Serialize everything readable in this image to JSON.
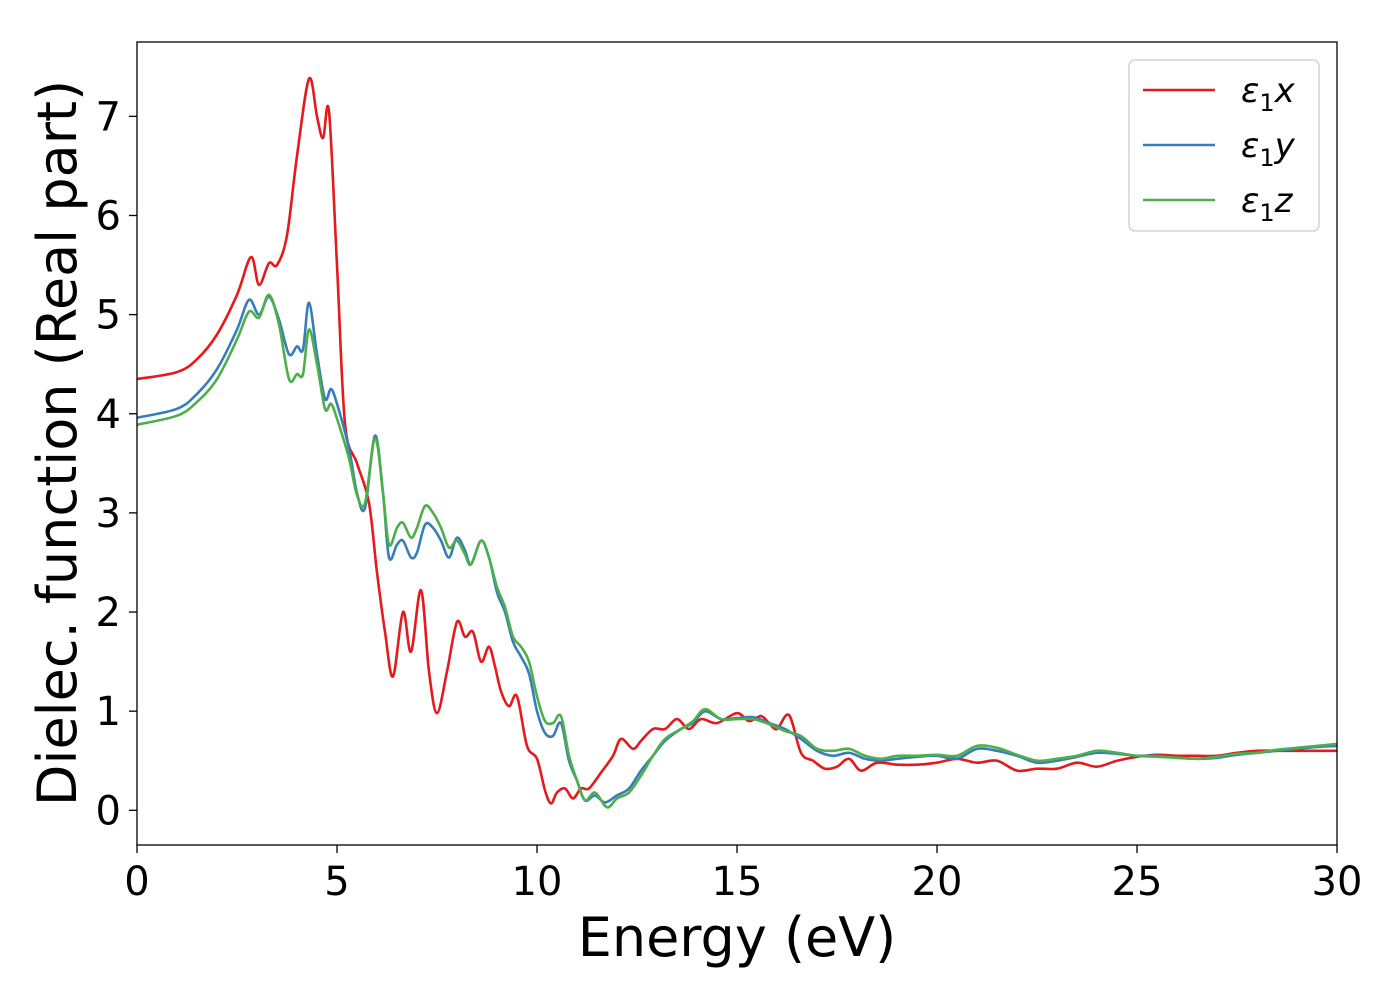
{
  "chart_data": {
    "type": "line",
    "xlabel": "Energy (eV)",
    "ylabel": "Dielec. function (Real part)",
    "xlim": [
      0,
      30
    ],
    "ylim": [
      -0.35,
      7.75
    ],
    "xticks": [
      0,
      5,
      10,
      15,
      20,
      25,
      30
    ],
    "yticks": [
      0,
      1,
      2,
      3,
      4,
      5,
      6,
      7
    ],
    "grid": false,
    "legend_position": "top-right",
    "series": [
      {
        "name": "ε1x",
        "legend": {
          "symbol": "ε",
          "sub": "1",
          "axis": "x"
        },
        "color": "#e41a1c",
        "points": [
          [
            0,
            4.35
          ],
          [
            1,
            4.42
          ],
          [
            1.5,
            4.55
          ],
          [
            2,
            4.8
          ],
          [
            2.5,
            5.2
          ],
          [
            2.85,
            5.58
          ],
          [
            3.05,
            5.3
          ],
          [
            3.3,
            5.52
          ],
          [
            3.5,
            5.5
          ],
          [
            3.75,
            5.8
          ],
          [
            4.0,
            6.6
          ],
          [
            4.3,
            7.38
          ],
          [
            4.5,
            7.0
          ],
          [
            4.65,
            6.78
          ],
          [
            4.8,
            7.05
          ],
          [
            5.0,
            5.5
          ],
          [
            5.2,
            3.9
          ],
          [
            5.5,
            3.5
          ],
          [
            5.8,
            3.1
          ],
          [
            6.0,
            2.4
          ],
          [
            6.2,
            1.8
          ],
          [
            6.4,
            1.35
          ],
          [
            6.65,
            2.0
          ],
          [
            6.85,
            1.6
          ],
          [
            7.1,
            2.22
          ],
          [
            7.3,
            1.4
          ],
          [
            7.5,
            0.98
          ],
          [
            7.75,
            1.4
          ],
          [
            8.0,
            1.9
          ],
          [
            8.2,
            1.75
          ],
          [
            8.4,
            1.8
          ],
          [
            8.6,
            1.5
          ],
          [
            8.8,
            1.65
          ],
          [
            8.95,
            1.45
          ],
          [
            9.1,
            1.2
          ],
          [
            9.3,
            1.05
          ],
          [
            9.5,
            1.15
          ],
          [
            9.75,
            0.65
          ],
          [
            10.0,
            0.52
          ],
          [
            10.2,
            0.2
          ],
          [
            10.35,
            0.07
          ],
          [
            10.5,
            0.18
          ],
          [
            10.7,
            0.22
          ],
          [
            10.9,
            0.12
          ],
          [
            11.1,
            0.22
          ],
          [
            11.3,
            0.22
          ],
          [
            11.6,
            0.38
          ],
          [
            11.9,
            0.55
          ],
          [
            12.1,
            0.72
          ],
          [
            12.4,
            0.62
          ],
          [
            12.6,
            0.7
          ],
          [
            12.9,
            0.82
          ],
          [
            13.2,
            0.82
          ],
          [
            13.5,
            0.92
          ],
          [
            13.8,
            0.82
          ],
          [
            14.1,
            0.92
          ],
          [
            14.5,
            0.88
          ],
          [
            15.0,
            0.98
          ],
          [
            15.3,
            0.9
          ],
          [
            15.6,
            0.95
          ],
          [
            15.8,
            0.88
          ],
          [
            16.0,
            0.82
          ],
          [
            16.3,
            0.96
          ],
          [
            16.6,
            0.58
          ],
          [
            16.9,
            0.5
          ],
          [
            17.2,
            0.42
          ],
          [
            17.5,
            0.44
          ],
          [
            17.8,
            0.52
          ],
          [
            18.1,
            0.4
          ],
          [
            18.5,
            0.48
          ],
          [
            19.0,
            0.46
          ],
          [
            19.5,
            0.46
          ],
          [
            20.0,
            0.48
          ],
          [
            20.5,
            0.52
          ],
          [
            21.0,
            0.48
          ],
          [
            21.5,
            0.5
          ],
          [
            22.0,
            0.4
          ],
          [
            22.5,
            0.42
          ],
          [
            23.0,
            0.42
          ],
          [
            23.5,
            0.48
          ],
          [
            24.0,
            0.44
          ],
          [
            24.5,
            0.5
          ],
          [
            25.0,
            0.54
          ],
          [
            25.5,
            0.56
          ],
          [
            26.0,
            0.55
          ],
          [
            26.5,
            0.55
          ],
          [
            27.0,
            0.55
          ],
          [
            27.5,
            0.58
          ],
          [
            28.0,
            0.6
          ],
          [
            28.5,
            0.6
          ],
          [
            29.0,
            0.6
          ],
          [
            29.5,
            0.6
          ],
          [
            30.0,
            0.6
          ]
        ]
      },
      {
        "name": "ε1y",
        "legend": {
          "symbol": "ε",
          "sub": "1",
          "axis": "y"
        },
        "color": "#377eb8",
        "points": [
          [
            0,
            3.96
          ],
          [
            1,
            4.05
          ],
          [
            1.5,
            4.2
          ],
          [
            2,
            4.45
          ],
          [
            2.5,
            4.85
          ],
          [
            2.8,
            5.15
          ],
          [
            3.05,
            5.0
          ],
          [
            3.3,
            5.18
          ],
          [
            3.55,
            4.95
          ],
          [
            3.8,
            4.6
          ],
          [
            4.0,
            4.68
          ],
          [
            4.15,
            4.65
          ],
          [
            4.3,
            5.12
          ],
          [
            4.5,
            4.6
          ],
          [
            4.7,
            4.15
          ],
          [
            4.85,
            4.25
          ],
          [
            5.0,
            4.1
          ],
          [
            5.3,
            3.65
          ],
          [
            5.5,
            3.2
          ],
          [
            5.7,
            3.05
          ],
          [
            5.95,
            3.78
          ],
          [
            6.15,
            3.2
          ],
          [
            6.3,
            2.55
          ],
          [
            6.5,
            2.68
          ],
          [
            6.65,
            2.72
          ],
          [
            6.85,
            2.55
          ],
          [
            7.0,
            2.6
          ],
          [
            7.2,
            2.88
          ],
          [
            7.4,
            2.85
          ],
          [
            7.6,
            2.72
          ],
          [
            7.8,
            2.55
          ],
          [
            8.0,
            2.75
          ],
          [
            8.2,
            2.62
          ],
          [
            8.35,
            2.48
          ],
          [
            8.6,
            2.72
          ],
          [
            8.8,
            2.55
          ],
          [
            9.0,
            2.2
          ],
          [
            9.2,
            2.0
          ],
          [
            9.4,
            1.7
          ],
          [
            9.6,
            1.55
          ],
          [
            9.8,
            1.38
          ],
          [
            10.0,
            1.0
          ],
          [
            10.2,
            0.78
          ],
          [
            10.4,
            0.75
          ],
          [
            10.6,
            0.88
          ],
          [
            10.8,
            0.5
          ],
          [
            11.0,
            0.3
          ],
          [
            11.2,
            0.1
          ],
          [
            11.45,
            0.15
          ],
          [
            11.7,
            0.08
          ],
          [
            12.0,
            0.15
          ],
          [
            12.3,
            0.22
          ],
          [
            12.6,
            0.4
          ],
          [
            12.9,
            0.55
          ],
          [
            13.2,
            0.7
          ],
          [
            13.6,
            0.82
          ],
          [
            13.9,
            0.88
          ],
          [
            14.2,
            1.0
          ],
          [
            14.6,
            0.92
          ],
          [
            15.0,
            0.93
          ],
          [
            15.4,
            0.94
          ],
          [
            15.8,
            0.88
          ],
          [
            16.2,
            0.82
          ],
          [
            16.6,
            0.72
          ],
          [
            17.0,
            0.6
          ],
          [
            17.4,
            0.55
          ],
          [
            17.8,
            0.58
          ],
          [
            18.2,
            0.52
          ],
          [
            18.6,
            0.5
          ],
          [
            19.0,
            0.52
          ],
          [
            19.5,
            0.54
          ],
          [
            20.0,
            0.55
          ],
          [
            20.5,
            0.52
          ],
          [
            21.0,
            0.62
          ],
          [
            21.5,
            0.6
          ],
          [
            22.0,
            0.55
          ],
          [
            22.5,
            0.48
          ],
          [
            23.0,
            0.5
          ],
          [
            23.5,
            0.54
          ],
          [
            24.0,
            0.58
          ],
          [
            24.5,
            0.57
          ],
          [
            25.0,
            0.55
          ],
          [
            25.5,
            0.55
          ],
          [
            26.0,
            0.53
          ],
          [
            26.5,
            0.52
          ],
          [
            27.0,
            0.53
          ],
          [
            27.5,
            0.56
          ],
          [
            28.0,
            0.58
          ],
          [
            28.5,
            0.6
          ],
          [
            29.0,
            0.62
          ],
          [
            29.5,
            0.64
          ],
          [
            30.0,
            0.65
          ]
        ]
      },
      {
        "name": "ε1z",
        "legend": {
          "symbol": "ε",
          "sub": "1",
          "axis": "z"
        },
        "color": "#4daf4a",
        "points": [
          [
            0,
            3.89
          ],
          [
            1,
            3.98
          ],
          [
            1.5,
            4.12
          ],
          [
            2,
            4.35
          ],
          [
            2.5,
            4.75
          ],
          [
            2.8,
            5.03
          ],
          [
            3.05,
            4.97
          ],
          [
            3.3,
            5.2
          ],
          [
            3.55,
            4.9
          ],
          [
            3.8,
            4.35
          ],
          [
            4.0,
            4.4
          ],
          [
            4.15,
            4.4
          ],
          [
            4.3,
            4.85
          ],
          [
            4.5,
            4.5
          ],
          [
            4.7,
            4.05
          ],
          [
            4.85,
            4.1
          ],
          [
            5.0,
            3.95
          ],
          [
            5.3,
            3.55
          ],
          [
            5.5,
            3.18
          ],
          [
            5.7,
            3.1
          ],
          [
            5.95,
            3.75
          ],
          [
            6.15,
            3.2
          ],
          [
            6.3,
            2.68
          ],
          [
            6.5,
            2.85
          ],
          [
            6.65,
            2.9
          ],
          [
            6.85,
            2.75
          ],
          [
            7.0,
            2.85
          ],
          [
            7.2,
            3.07
          ],
          [
            7.4,
            3.0
          ],
          [
            7.6,
            2.85
          ],
          [
            7.8,
            2.65
          ],
          [
            8.0,
            2.72
          ],
          [
            8.2,
            2.58
          ],
          [
            8.35,
            2.48
          ],
          [
            8.6,
            2.72
          ],
          [
            8.8,
            2.55
          ],
          [
            9.0,
            2.25
          ],
          [
            9.2,
            2.05
          ],
          [
            9.4,
            1.75
          ],
          [
            9.6,
            1.65
          ],
          [
            9.8,
            1.5
          ],
          [
            10.0,
            1.15
          ],
          [
            10.2,
            0.9
          ],
          [
            10.4,
            0.88
          ],
          [
            10.6,
            0.95
          ],
          [
            10.8,
            0.55
          ],
          [
            11.0,
            0.3
          ],
          [
            11.2,
            0.1
          ],
          [
            11.45,
            0.18
          ],
          [
            11.75,
            0.03
          ],
          [
            12.0,
            0.12
          ],
          [
            12.3,
            0.18
          ],
          [
            12.6,
            0.35
          ],
          [
            12.9,
            0.55
          ],
          [
            13.2,
            0.72
          ],
          [
            13.6,
            0.82
          ],
          [
            13.9,
            0.9
          ],
          [
            14.2,
            1.02
          ],
          [
            14.6,
            0.92
          ],
          [
            15.0,
            0.92
          ],
          [
            15.4,
            0.92
          ],
          [
            15.8,
            0.87
          ],
          [
            16.2,
            0.8
          ],
          [
            16.6,
            0.75
          ],
          [
            17.0,
            0.62
          ],
          [
            17.4,
            0.6
          ],
          [
            17.8,
            0.62
          ],
          [
            18.2,
            0.55
          ],
          [
            18.6,
            0.52
          ],
          [
            19.0,
            0.55
          ],
          [
            19.5,
            0.55
          ],
          [
            20.0,
            0.56
          ],
          [
            20.5,
            0.55
          ],
          [
            21.0,
            0.65
          ],
          [
            21.5,
            0.63
          ],
          [
            22.0,
            0.56
          ],
          [
            22.5,
            0.5
          ],
          [
            23.0,
            0.52
          ],
          [
            23.5,
            0.55
          ],
          [
            24.0,
            0.6
          ],
          [
            24.5,
            0.58
          ],
          [
            25.0,
            0.55
          ],
          [
            25.5,
            0.54
          ],
          [
            26.0,
            0.53
          ],
          [
            26.5,
            0.52
          ],
          [
            27.0,
            0.54
          ],
          [
            27.5,
            0.57
          ],
          [
            28.0,
            0.58
          ],
          [
            28.5,
            0.61
          ],
          [
            29.0,
            0.63
          ],
          [
            29.5,
            0.65
          ],
          [
            30.0,
            0.67
          ]
        ]
      }
    ]
  }
}
